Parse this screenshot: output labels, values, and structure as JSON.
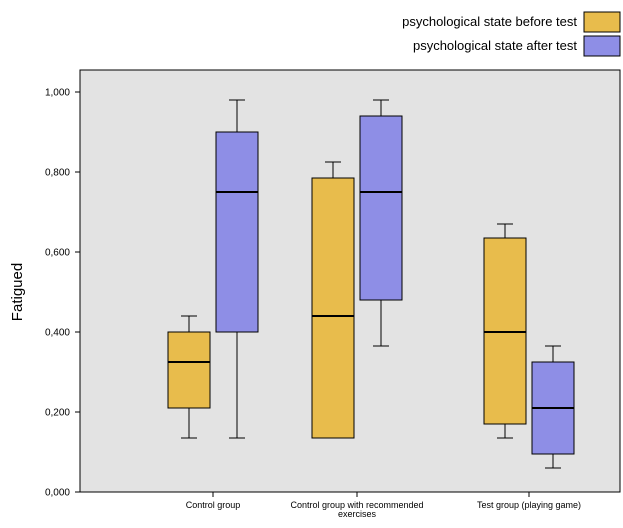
{
  "chart_data": {
    "type": "boxplot",
    "ylabel": "Fatigued",
    "ylim": [
      0,
      1
    ],
    "yticks": [
      "0,000",
      "0,200",
      "0,400",
      "0,600",
      "0,800",
      "1,000"
    ],
    "ytick_values": [
      0,
      0.2,
      0.4,
      0.6,
      0.8,
      1.0
    ],
    "categories": [
      [
        "Control group"
      ],
      [
        "Control group with recommended",
        "exercises"
      ],
      [
        "Test group (playing game)"
      ]
    ],
    "legend_position": "top-right",
    "series": [
      {
        "name": "psychological state before test",
        "color": "#e8bc4c",
        "boxes": [
          {
            "min": 0.135,
            "q1": 0.21,
            "median": 0.325,
            "q3": 0.4,
            "max": 0.44
          },
          {
            "min": 0.135,
            "q1": 0.135,
            "median": 0.44,
            "q3": 0.785,
            "max": 0.825
          },
          {
            "min": 0.135,
            "q1": 0.17,
            "median": 0.4,
            "q3": 0.635,
            "max": 0.67
          }
        ]
      },
      {
        "name": "psychological state after test",
        "color": "#8e8ee6",
        "boxes": [
          {
            "min": 0.135,
            "q1": 0.4,
            "median": 0.75,
            "q3": 0.9,
            "max": 0.98
          },
          {
            "min": 0.365,
            "q1": 0.48,
            "median": 0.75,
            "q3": 0.94,
            "max": 0.98
          },
          {
            "min": 0.06,
            "q1": 0.095,
            "median": 0.21,
            "q3": 0.325,
            "max": 0.365
          }
        ]
      }
    ]
  }
}
